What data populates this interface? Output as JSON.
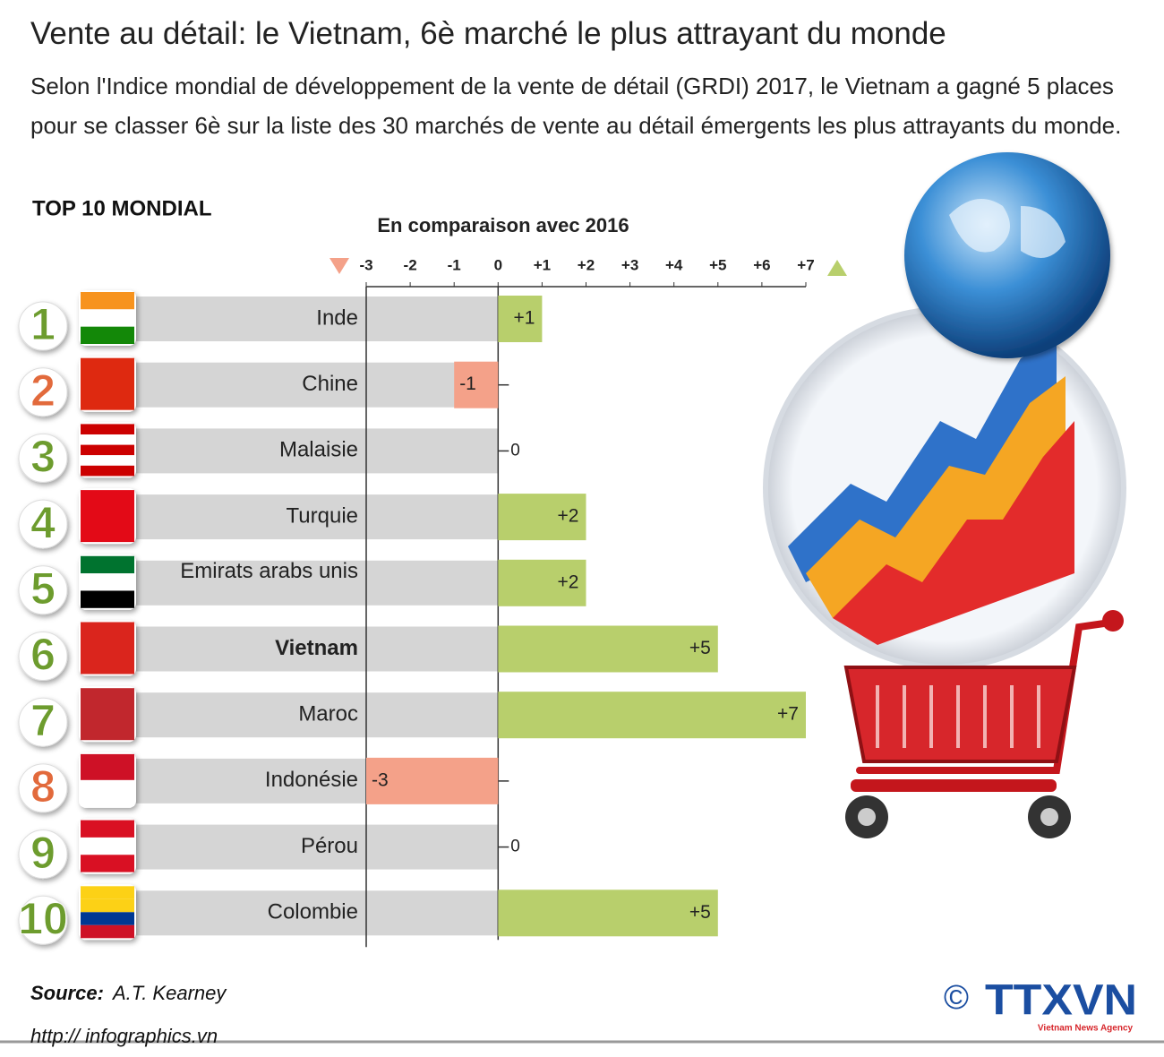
{
  "chart_data": {
    "type": "bar",
    "title": "Vente au détail: le Vietnam, 6è marché le plus attrayant du monde",
    "subtitle": "Selon l'Indice mondial de développement de la vente de détail (GRDI) 2017, le Vietnam a gagné 5 places pour se classer 6è sur la liste des 30 marchés de vente au détail émergents les plus attrayants du monde.",
    "section_title": "TOP 10 MONDIAL",
    "axis_title": "En comparaison avec 2016",
    "ranks": [
      1,
      2,
      3,
      4,
      5,
      6,
      7,
      8,
      9,
      10
    ],
    "categories": [
      "Inde",
      "Chine",
      "Malaisie",
      "Turquie",
      "Emirats arabs unis",
      "Vietnam",
      "Maroc",
      "Indonésie",
      "Pérou",
      "Colombie"
    ],
    "values": [
      1,
      -1,
      0,
      2,
      2,
      5,
      7,
      -3,
      0,
      5
    ],
    "value_labels": [
      "+1",
      "-1",
      "0",
      "+2",
      "+2",
      "+5",
      "+7",
      "-3",
      "0",
      "+5"
    ],
    "highlight": "Vietnam",
    "positive_color": "#b8cf6c",
    "negative_color": "#f4a189",
    "xlim": [
      -3,
      7
    ],
    "xticks": [
      -3,
      -2,
      -1,
      0,
      {
        "value": 1,
        "label": "+1"
      },
      {
        "value": 2,
        "label": "+2"
      },
      {
        "value": 3,
        "label": "+3"
      },
      {
        "value": 4,
        "label": "+4"
      },
      {
        "value": 5,
        "label": "+5"
      },
      {
        "value": 6,
        "label": "+6"
      },
      {
        "value": 7,
        "label": "+7"
      }
    ],
    "source_label": "Source:",
    "source": "A.T. Kearney",
    "url": "http:// infographics.vn",
    "copyright": "©",
    "agency": "TTXVN",
    "agency_full": "Vietnam News Agency"
  }
}
